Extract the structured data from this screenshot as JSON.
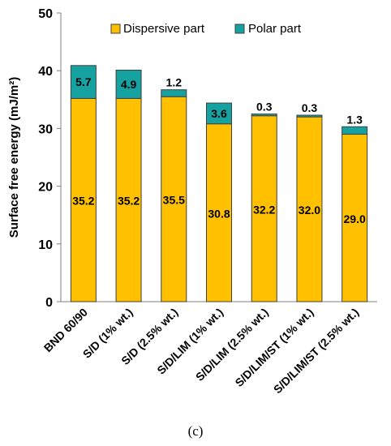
{
  "panel_label": "(c)",
  "chart_data": {
    "type": "bar",
    "stacked": true,
    "title": "",
    "xlabel": "",
    "ylabel": "Surface free energy (mJ/m²)",
    "ylim": [
      0,
      50
    ],
    "yticks": [
      0,
      10,
      20,
      30,
      40,
      50
    ],
    "grid": false,
    "legend_position": "top",
    "categories": [
      "BND 60/90",
      "S/D (1% wt.)",
      "S/D (2.5% wt.)",
      "S/D/LIM (1% wt.)",
      "S/D/LIM (2.5% wt.)",
      "S/D/LIM/ST (1% wt.)",
      "S/D/LIM/ST (2.5% wt.)"
    ],
    "series": [
      {
        "name": "Dispersive part",
        "color": "#FFC000",
        "values": [
          35.2,
          35.2,
          35.5,
          30.8,
          32.2,
          32.0,
          29.0
        ],
        "labels": [
          "35.2",
          "35.2",
          "35.5",
          "30.8",
          "32.2",
          "32.0",
          "29.0"
        ]
      },
      {
        "name": "Polar part",
        "color": "#17A2A2",
        "values": [
          5.7,
          4.9,
          1.2,
          3.6,
          0.3,
          0.3,
          1.3
        ],
        "labels": [
          "5.7",
          "4.9",
          "1.2",
          "3.6",
          "0.3",
          "0.3",
          "1.3"
        ]
      }
    ]
  }
}
